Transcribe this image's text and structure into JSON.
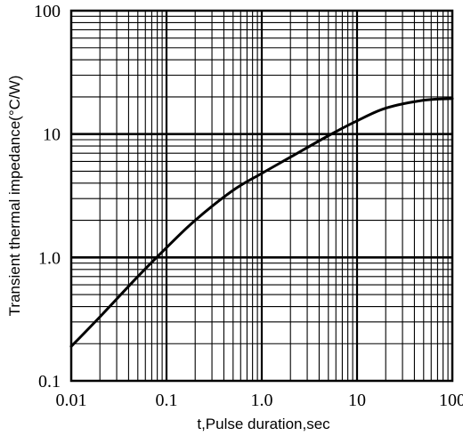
{
  "chart_data": {
    "type": "line",
    "title": "",
    "xlabel": "t,Pulse duration,sec",
    "ylabel": "Transient thermal impedance(°C/W)",
    "x_scale": "log",
    "y_scale": "log",
    "xlim": [
      0.01,
      100
    ],
    "ylim": [
      0.1,
      100
    ],
    "x_ticks": [
      {
        "value": 0.01,
        "label": "0.01"
      },
      {
        "value": 0.1,
        "label": "0.1"
      },
      {
        "value": 1,
        "label": "1.0"
      },
      {
        "value": 10,
        "label": "10"
      },
      {
        "value": 100,
        "label": "100"
      }
    ],
    "y_ticks": [
      {
        "value": 0.1,
        "label": "0.1"
      },
      {
        "value": 1,
        "label": "1.0"
      },
      {
        "value": 10,
        "label": "10"
      },
      {
        "value": 100,
        "label": "100"
      }
    ],
    "grid": true,
    "series": [
      {
        "color": "#000000",
        "x": [
          0.01,
          0.02,
          0.05,
          0.1,
          0.2,
          0.5,
          1,
          2,
          5,
          10,
          20,
          50,
          100
        ],
        "y": [
          0.19,
          0.33,
          0.7,
          1.2,
          2.0,
          3.5,
          4.8,
          6.5,
          9.7,
          12.8,
          16.2,
          18.8,
          19.4
        ]
      }
    ]
  }
}
